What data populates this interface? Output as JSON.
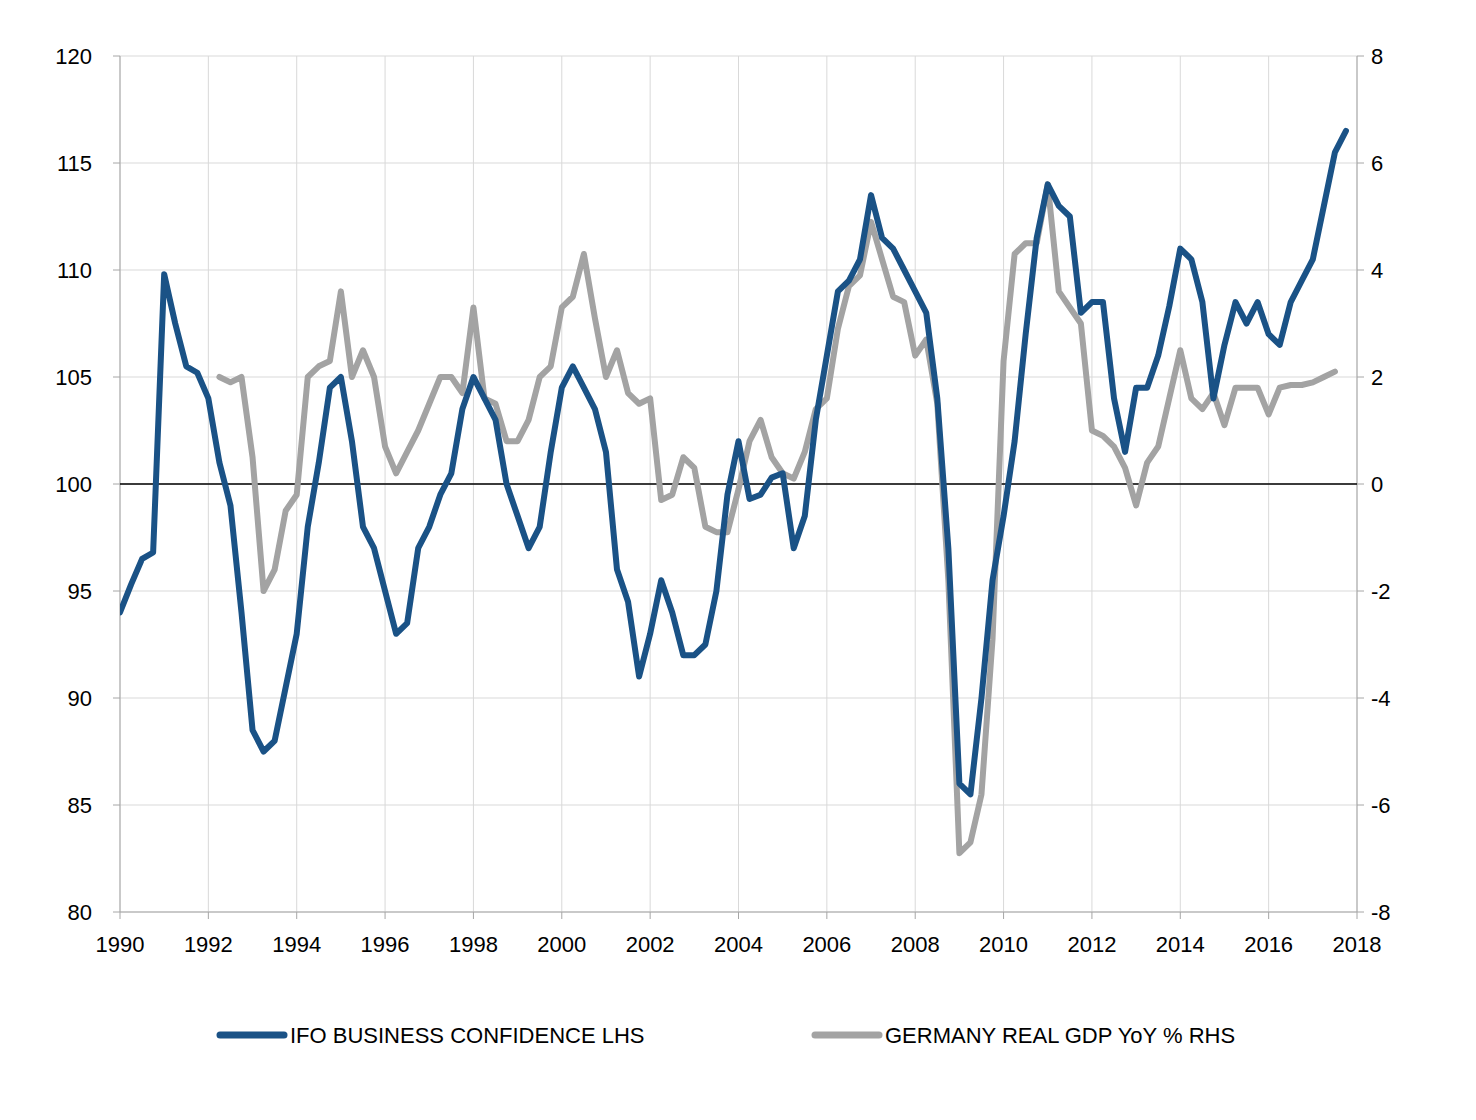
{
  "chart_data": {
    "type": "line",
    "x": [
      1990,
      1990.25,
      1990.5,
      1990.75,
      1991,
      1991.25,
      1991.5,
      1991.75,
      1992,
      1992.25,
      1992.5,
      1992.75,
      1993,
      1993.25,
      1993.5,
      1993.75,
      1994,
      1994.25,
      1994.5,
      1994.75,
      1995,
      1995.25,
      1995.5,
      1995.75,
      1996,
      1996.25,
      1996.5,
      1996.75,
      1997,
      1997.25,
      1997.5,
      1997.75,
      1998,
      1998.25,
      1998.5,
      1998.75,
      1999,
      1999.25,
      1999.5,
      1999.75,
      2000,
      2000.25,
      2000.5,
      2000.75,
      2001,
      2001.25,
      2001.5,
      2001.75,
      2002,
      2002.25,
      2002.5,
      2002.75,
      2003,
      2003.25,
      2003.5,
      2003.75,
      2004,
      2004.25,
      2004.5,
      2004.75,
      2005,
      2005.25,
      2005.5,
      2005.75,
      2006,
      2006.25,
      2006.5,
      2006.75,
      2007,
      2007.25,
      2007.5,
      2007.75,
      2008,
      2008.25,
      2008.5,
      2008.75,
      2009,
      2009.25,
      2009.5,
      2009.75,
      2010,
      2010.25,
      2010.5,
      2010.75,
      2011,
      2011.25,
      2011.5,
      2011.75,
      2012,
      2012.25,
      2012.5,
      2012.75,
      2013,
      2013.25,
      2013.5,
      2013.75,
      2014,
      2014.25,
      2014.5,
      2014.75,
      2015,
      2015.25,
      2015.5,
      2015.75,
      2016,
      2016.25,
      2016.5,
      2016.75,
      2017,
      2017.25,
      2017.5,
      2017.75
    ],
    "series": [
      {
        "name": "IFO BUSINESS CONFIDENCE LHS",
        "color": "#1a5286",
        "axis": "y",
        "values": [
          94,
          95.3,
          96.5,
          96.8,
          109.8,
          107.5,
          105.5,
          105.2,
          104,
          101,
          99,
          94,
          88.5,
          87.5,
          88,
          90.5,
          93,
          98,
          101,
          104.5,
          105,
          102,
          98,
          97,
          95,
          93,
          93.5,
          97,
          98,
          99.5,
          100.5,
          103.5,
          105,
          104,
          103,
          100,
          98.5,
          97,
          98,
          101.5,
          104.5,
          105.5,
          104.5,
          103.5,
          101.5,
          96,
          94.5,
          91,
          93,
          95.5,
          94,
          92,
          92,
          92.5,
          95,
          99.5,
          102,
          99.3,
          99.5,
          100.3,
          100.5,
          97,
          98.5,
          103,
          106,
          109,
          109.5,
          110.5,
          113.5,
          111.5,
          111,
          110,
          109,
          108,
          104,
          97,
          86,
          85.5,
          90,
          95.5,
          98.5,
          102,
          107,
          111.5,
          114,
          113,
          112.5,
          108,
          108.5,
          108.5,
          104,
          101.5,
          104.5,
          104.5,
          106,
          108.3,
          111,
          110.5,
          108.5,
          104,
          106.5,
          108.5,
          107.5,
          108.5,
          107,
          106.5,
          108.5,
          109.5,
          110.5,
          113,
          115.5,
          116.5
        ]
      },
      {
        "name": "GERMANY REAL GDP YoY % RHS",
        "color": "#a3a3a3",
        "axis": "y2",
        "values": [
          null,
          null,
          null,
          null,
          null,
          null,
          null,
          null,
          null,
          2,
          1.9,
          2,
          0.5,
          -2,
          -1.6,
          -0.5,
          -0.2,
          2,
          2.2,
          2.3,
          3.6,
          2,
          2.5,
          2,
          0.7,
          0.2,
          0.6,
          1,
          1.5,
          2,
          2,
          1.7,
          3.3,
          1.6,
          1.5,
          0.8,
          0.8,
          1.2,
          2,
          2.2,
          3.3,
          3.5,
          4.3,
          3.1,
          2,
          2.5,
          1.7,
          1.5,
          1.6,
          -0.3,
          -0.2,
          0.5,
          0.3,
          -0.8,
          -0.9,
          -0.9,
          -0.1,
          0.8,
          1.2,
          0.5,
          0.2,
          0.1,
          0.6,
          1.4,
          1.6,
          2.9,
          3.7,
          3.9,
          4.9,
          4.2,
          3.5,
          3.4,
          2.4,
          2.7,
          1.5,
          -1.8,
          -6.9,
          -6.7,
          -5.8,
          -2.9,
          2.3,
          4.3,
          4.5,
          4.5,
          5.6,
          3.6,
          3.3,
          3,
          1,
          0.9,
          0.7,
          0.3,
          -0.4,
          0.4,
          0.7,
          1.6,
          2.5,
          1.6,
          1.4,
          1.7,
          1.1,
          1.8,
          1.8,
          1.8,
          1.3,
          1.8,
          1.85,
          1.85,
          1.9,
          2,
          2.1,
          null
        ]
      }
    ],
    "xlim": [
      1990,
      2018
    ],
    "xticks": [
      1990,
      1992,
      1994,
      1996,
      1998,
      2000,
      2002,
      2004,
      2006,
      2008,
      2010,
      2012,
      2014,
      2016,
      2018
    ],
    "ylim": [
      80,
      120
    ],
    "yticks": [
      80,
      85,
      90,
      95,
      100,
      105,
      110,
      115,
      120
    ],
    "y2lim": [
      -8,
      8
    ],
    "y2ticks": [
      -8,
      -6,
      -4,
      -2,
      0,
      2,
      4,
      6,
      8
    ],
    "grid": true,
    "legend": "bottom"
  }
}
